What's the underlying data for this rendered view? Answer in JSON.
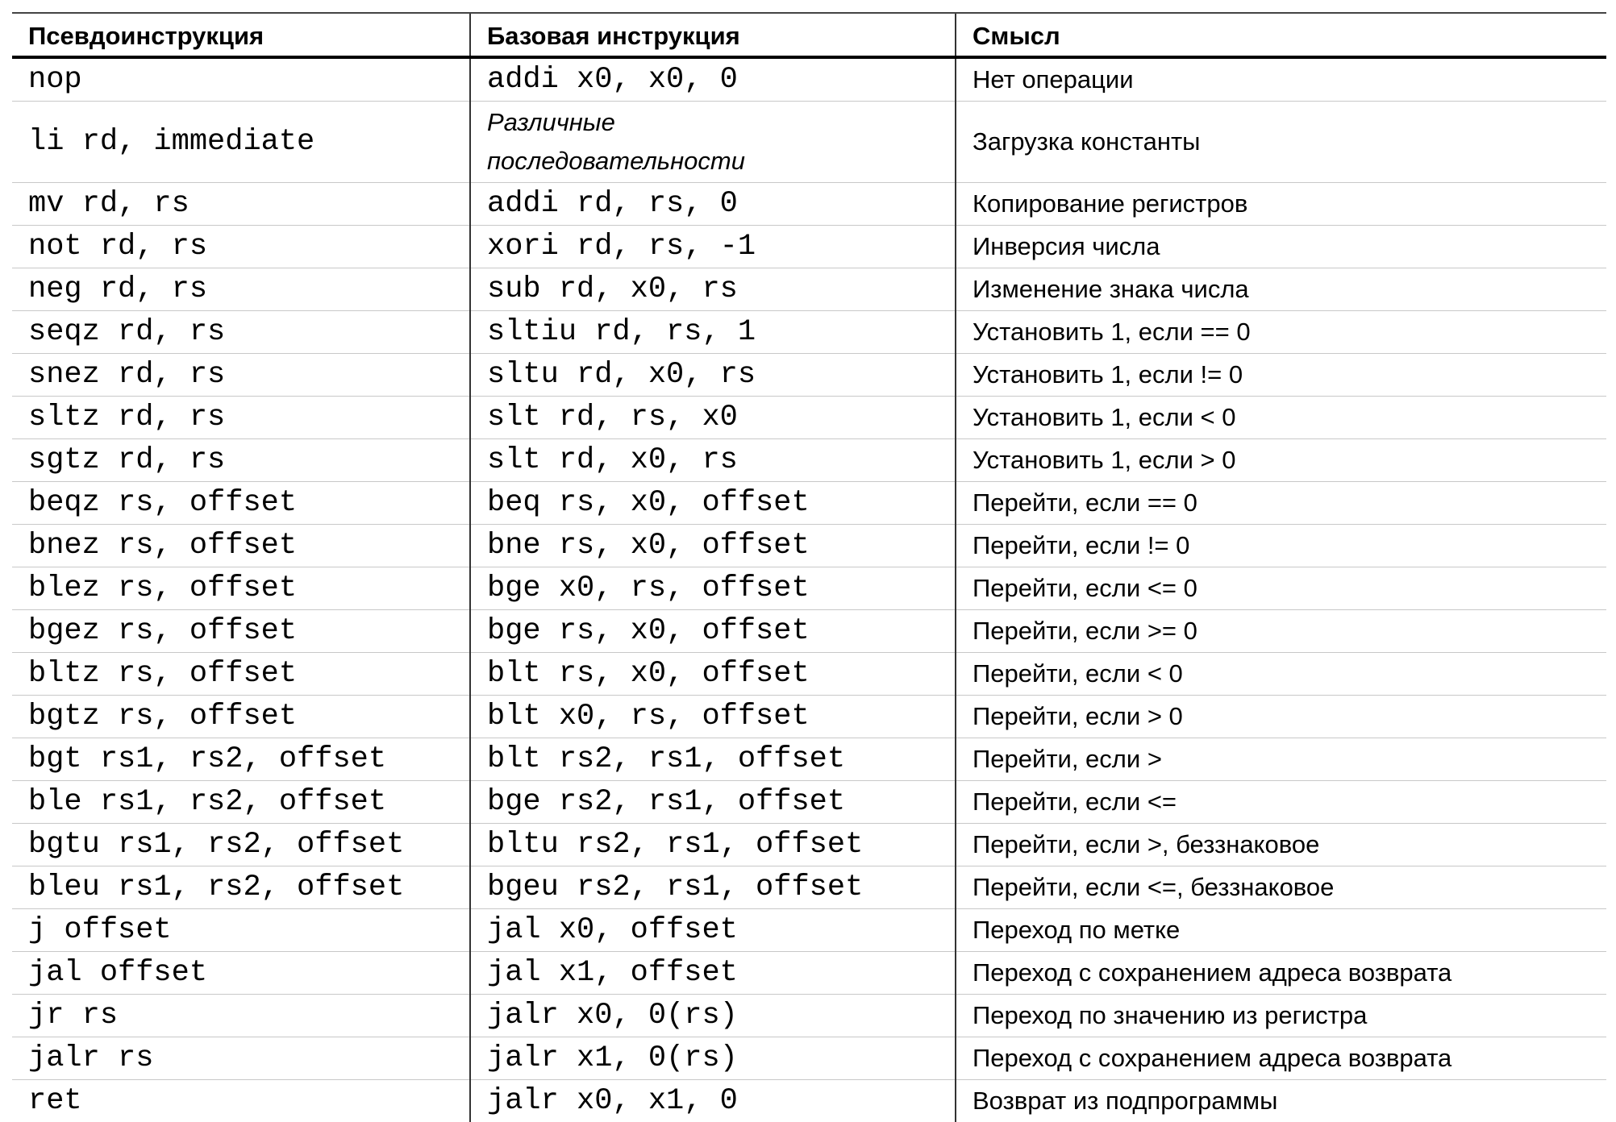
{
  "table": {
    "header": [
      "Псевдоинструкция",
      "Базовая инструкция",
      "Смысл"
    ],
    "rows": [
      [
        "nop",
        "addi x0, x0, 0",
        "Нет операции"
      ],
      [
        "li rd, immediate",
        "Различные последовательности",
        "Загрузка константы"
      ],
      [
        "mv rd, rs",
        "addi rd, rs, 0",
        "Копирование регистров"
      ],
      [
        "not rd, rs",
        "xori rd, rs, -1",
        "Инверсия числа"
      ],
      [
        "neg rd, rs",
        "sub rd, x0, rs",
        "Изменение знака числа"
      ],
      [
        "seqz rd, rs",
        "sltiu rd, rs, 1",
        "Установить 1, если == 0"
      ],
      [
        "snez rd, rs",
        "sltu rd, x0, rs",
        "Установить 1, если != 0"
      ],
      [
        "sltz rd, rs",
        "slt rd, rs, x0",
        "Установить 1, если < 0"
      ],
      [
        "sgtz rd, rs",
        "slt rd, x0, rs",
        "Установить 1, если > 0"
      ],
      [
        "beqz rs, offset",
        "beq rs, x0, offset",
        "Перейти, если == 0"
      ],
      [
        "bnez rs, offset",
        "bne rs, x0, offset",
        "Перейти, если != 0"
      ],
      [
        "blez rs, offset",
        "bge x0, rs, offset",
        "Перейти, если <= 0"
      ],
      [
        "bgez rs, offset",
        "bge rs, x0, offset",
        "Перейти, если >= 0"
      ],
      [
        "bltz rs, offset",
        "blt rs, x0, offset",
        "Перейти, если < 0"
      ],
      [
        "bgtz rs, offset",
        "blt x0, rs, offset",
        "Перейти, если > 0"
      ],
      [
        "bgt rs1, rs2, offset",
        "blt rs2, rs1, offset",
        "Перейти, если >"
      ],
      [
        "ble rs1, rs2, offset",
        "bge rs2, rs1, offset",
        "Перейти, если <="
      ],
      [
        "bgtu rs1, rs2, offset",
        "bltu rs2, rs1, offset",
        "Перейти, если >, беззнаковое"
      ],
      [
        "bleu rs1, rs2, offset",
        "bgeu rs2, rs1, offset",
        "Перейти, если <=, беззнаковое"
      ],
      [
        "j offset",
        "jal x0, offset",
        "Переход по метке"
      ],
      [
        "jal offset",
        "jal x1, offset",
        "Переход с сохранением адреса возврата"
      ],
      [
        "jr rs",
        "jalr x0, 0(rs)",
        "Переход по значению из регистра"
      ],
      [
        "jalr rs",
        "jalr x1, 0(rs)",
        "Переход с сохранением адреса возврата"
      ],
      [
        "ret",
        "jalr x0, x1, 0",
        "Возврат из подпрограммы"
      ]
    ]
  }
}
